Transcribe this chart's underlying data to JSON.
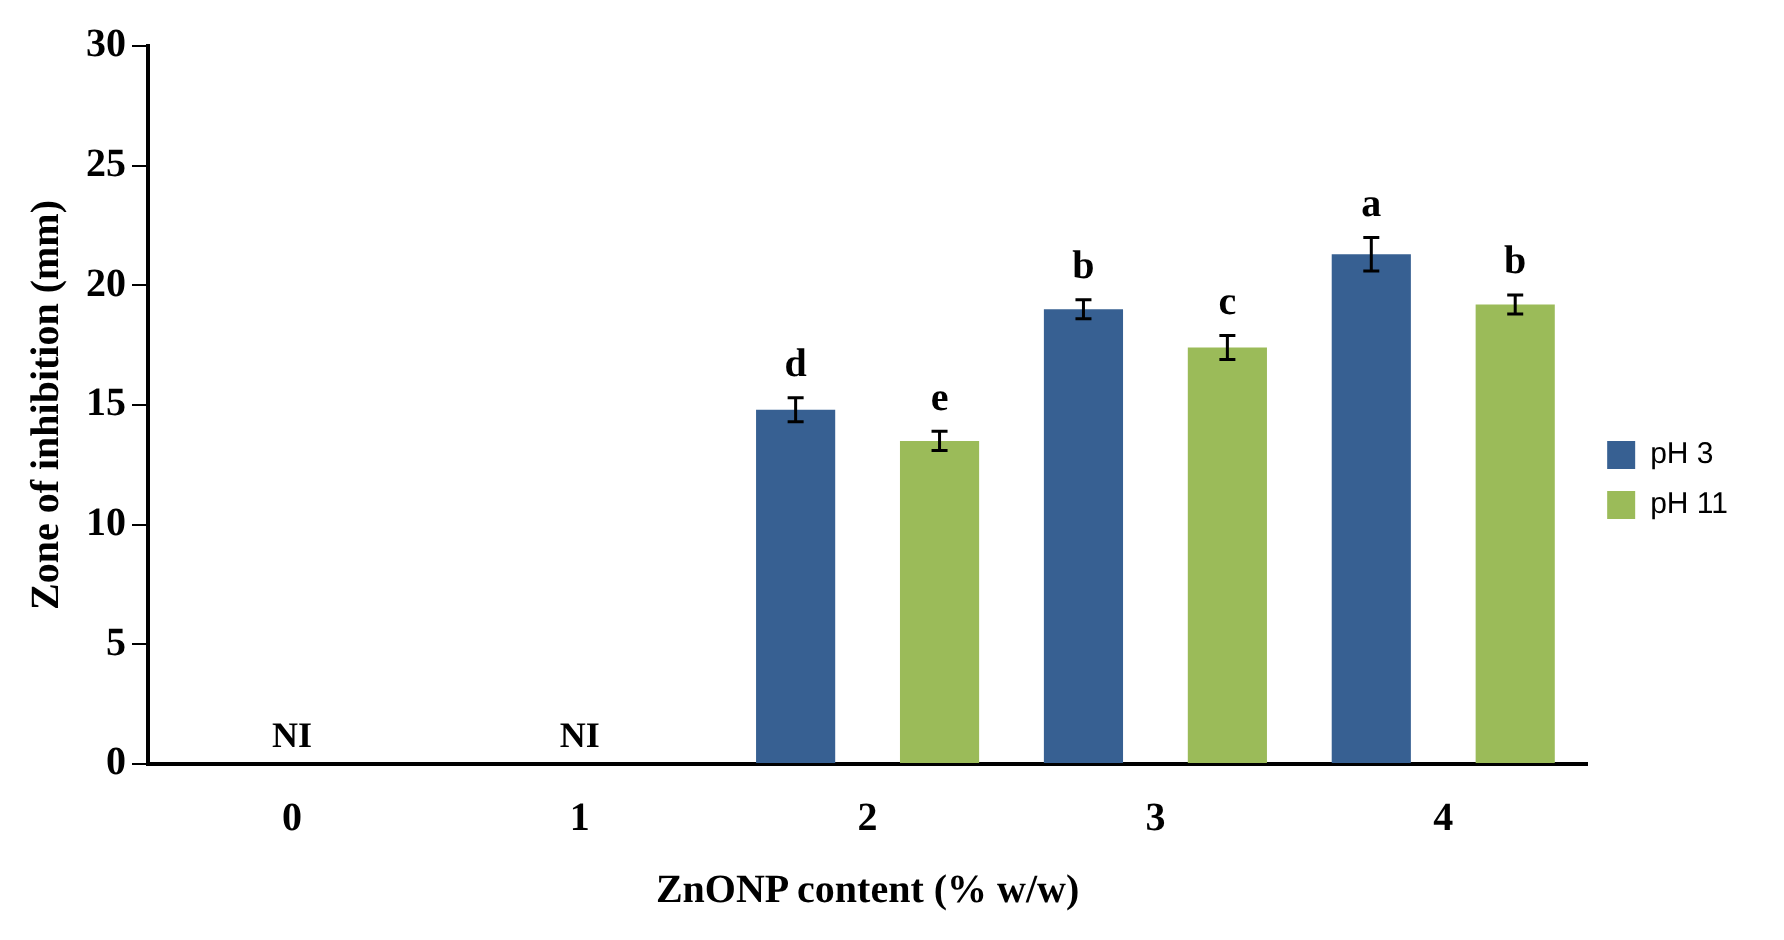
{
  "chart_data": {
    "type": "bar",
    "xlabel": "ZnONP content (% w/w)",
    "ylabel": "Zone of inhibition (mm)",
    "categories": [
      "0",
      "1",
      "2",
      "3",
      "4"
    ],
    "series": [
      {
        "name": "pH 3",
        "color": "#376092",
        "values": [
          null,
          null,
          14.8,
          19.0,
          21.3
        ],
        "errors": [
          null,
          null,
          0.5,
          0.4,
          0.7
        ],
        "value_labels": [
          null,
          null,
          "d",
          "b",
          "a"
        ]
      },
      {
        "name": "pH 11",
        "color": "#9bbb59",
        "values": [
          null,
          null,
          13.5,
          17.4,
          19.2
        ],
        "errors": [
          null,
          null,
          0.4,
          0.5,
          0.4
        ],
        "value_labels": [
          null,
          null,
          "e",
          "c",
          "b"
        ]
      }
    ],
    "ylim": [
      0,
      30
    ],
    "yticks": [
      0,
      5,
      10,
      15,
      20,
      25,
      30
    ],
    "grid": false,
    "legend": "right",
    "annotations": [
      "NI",
      "NI"
    ]
  }
}
